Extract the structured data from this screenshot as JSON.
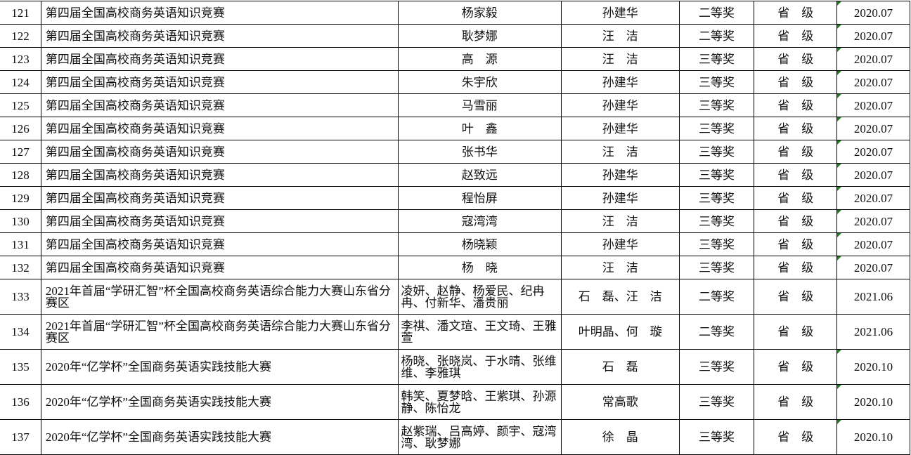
{
  "accent_colors": {
    "comment_marker": "#1a7f1a"
  },
  "rows": [
    {
      "no": "121",
      "competition": "第四届全国高校商务英语知识竞赛",
      "students": "杨家毅",
      "teacher": "孙建华",
      "award": "二等奖",
      "level": "省　级",
      "date": "2020.07",
      "marker": true
    },
    {
      "no": "122",
      "competition": "第四届全国高校商务英语知识竞赛",
      "students": "耿梦娜",
      "teacher": "汪　洁",
      "award": "二等奖",
      "level": "省　级",
      "date": "2020.07",
      "marker": true
    },
    {
      "no": "123",
      "competition": "第四届全国高校商务英语知识竞赛",
      "students": "高　源",
      "teacher": "汪　洁",
      "award": "三等奖",
      "level": "省　级",
      "date": "2020.07",
      "marker": true
    },
    {
      "no": "124",
      "competition": "第四届全国高校商务英语知识竞赛",
      "students": "朱宇欣",
      "teacher": "孙建华",
      "award": "三等奖",
      "level": "省　级",
      "date": "2020.07",
      "marker": true
    },
    {
      "no": "125",
      "competition": "第四届全国高校商务英语知识竞赛",
      "students": "马雪丽",
      "teacher": "孙建华",
      "award": "三等奖",
      "level": "省　级",
      "date": "2020.07",
      "marker": true
    },
    {
      "no": "126",
      "competition": "第四届全国高校商务英语知识竞赛",
      "students": "叶　鑫",
      "teacher": "孙建华",
      "award": "三等奖",
      "level": "省　级",
      "date": "2020.07",
      "marker": true
    },
    {
      "no": "127",
      "competition": "第四届全国高校商务英语知识竞赛",
      "students": "张书华",
      "teacher": "汪　洁",
      "award": "三等奖",
      "level": "省　级",
      "date": "2020.07",
      "marker": true
    },
    {
      "no": "128",
      "competition": "第四届全国高校商务英语知识竞赛",
      "students": "赵致远",
      "teacher": "孙建华",
      "award": "三等奖",
      "level": "省　级",
      "date": "2020.07",
      "marker": true
    },
    {
      "no": "129",
      "competition": "第四届全国高校商务英语知识竞赛",
      "students": "程怡屏",
      "teacher": "孙建华",
      "award": "三等奖",
      "level": "省　级",
      "date": "2020.07",
      "marker": true
    },
    {
      "no": "130",
      "competition": "第四届全国高校商务英语知识竞赛",
      "students": "寇湾湾",
      "teacher": "汪　洁",
      "award": "三等奖",
      "level": "省　级",
      "date": "2020.07",
      "marker": true
    },
    {
      "no": "131",
      "competition": "第四届全国高校商务英语知识竞赛",
      "students": "杨晓颖",
      "teacher": "孙建华",
      "award": "三等奖",
      "level": "省　级",
      "date": "2020.07",
      "marker": true
    },
    {
      "no": "132",
      "competition": "第四届全国高校商务英语知识竞赛",
      "students": "杨　晓",
      "teacher": "汪　洁",
      "award": "三等奖",
      "level": "省　级",
      "date": "2020.07",
      "marker": true
    },
    {
      "no": "133",
      "competition": "2021年首届“学研汇智”杯全国高校商务英语综合能力大赛山东省分赛区",
      "students": "凌妍、赵静、杨爱民、纪冉冉、付新华、潘贵丽",
      "teacher": "石　磊、汪　洁",
      "award": "二等奖",
      "level": "省　级",
      "date": "2021.06",
      "marker": false
    },
    {
      "no": "134",
      "competition": "2021年首届“学研汇智”杯全国高校商务英语综合能力大赛山东省分赛区",
      "students": "李祺、潘文瑄、王文琦、王雅萱",
      "teacher": "叶明晶、何　璇",
      "award": "二等奖",
      "level": "省　级",
      "date": "2021.06",
      "marker": false
    },
    {
      "no": "135",
      "competition": "2020年“亿学杯”全国商务英语实践技能大赛",
      "students": "杨晓、张晓岚、于水晴、张维维、李雅琪",
      "teacher": "石　磊",
      "award": "三等奖",
      "level": "省　级",
      "date": "2020.10",
      "marker": true
    },
    {
      "no": "136",
      "competition": "2020年“亿学杯”全国商务英语实践技能大赛",
      "students": "韩笑、夏梦晗、王紫琪、孙源静、陈怡龙",
      "teacher": "常高歌",
      "award": "三等奖",
      "level": "省　级",
      "date": "2020.10",
      "marker": true
    },
    {
      "no": "137",
      "competition": "2020年“亿学杯”全国商务英语实践技能大赛",
      "students": "赵紫瑞、吕高婷、颜宇、寇湾湾、耿梦娜",
      "teacher": "徐　晶",
      "award": "三等奖",
      "level": "省　级",
      "date": "2020.10",
      "marker": true
    }
  ]
}
